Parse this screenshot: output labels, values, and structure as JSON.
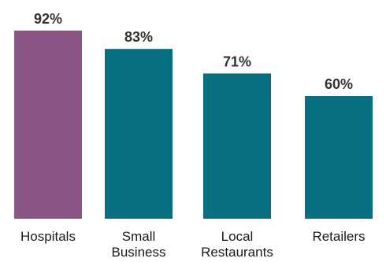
{
  "colors": {
    "highlight": "#8b5585",
    "default": "#086f80",
    "text": "#1a1a1a",
    "background": "#ffffff"
  },
  "chart_data": {
    "type": "bar",
    "title": "",
    "xlabel": "",
    "ylabel": "",
    "ylim": [
      0,
      100
    ],
    "grid": false,
    "legend": "none",
    "value_suffix": "%",
    "highlight_index": 0,
    "categories": [
      "Hospitals",
      "Small\nBusiness",
      "Local\nRestaurants",
      "Retailers"
    ],
    "values": [
      92,
      83,
      71,
      60
    ],
    "data_labels": [
      "92%",
      "83%",
      "71%",
      "60%"
    ]
  }
}
